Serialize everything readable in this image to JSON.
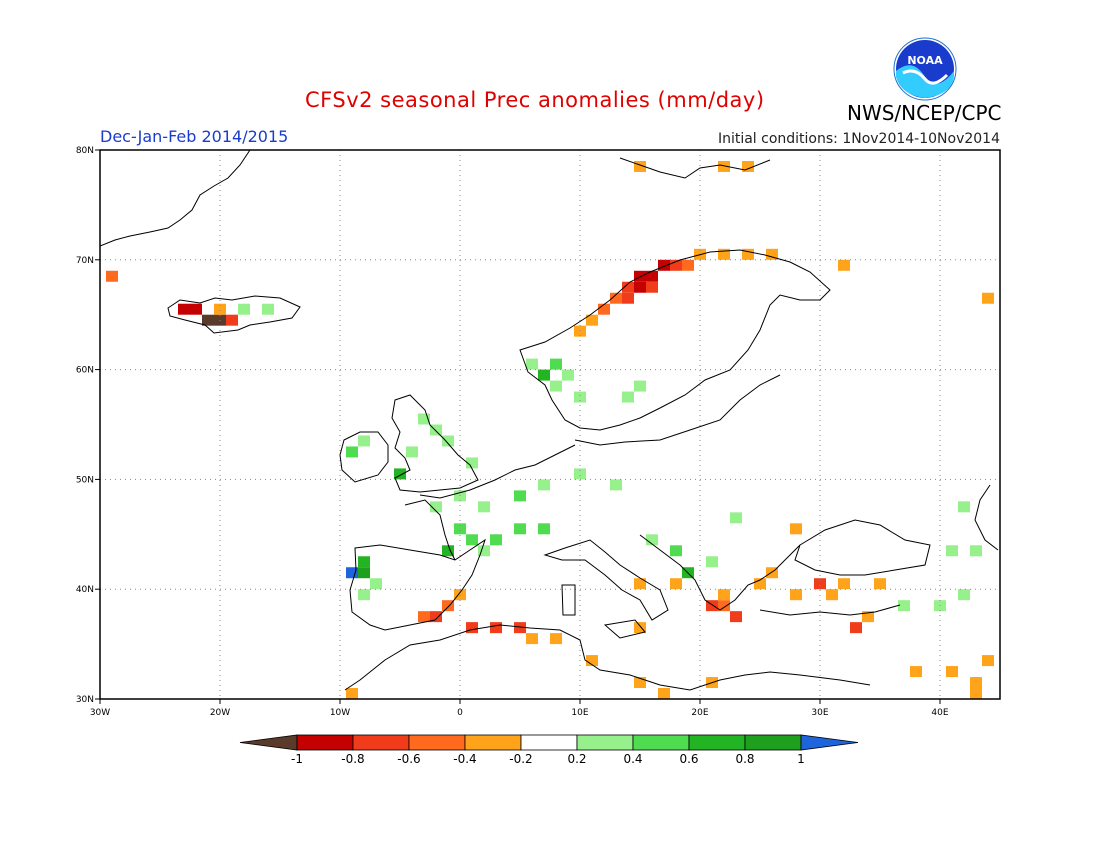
{
  "header": {
    "title": "CFSv2 seasonal Prec anomalies (mm/day)",
    "agency": "NWS/NCEP/CPC",
    "season": "Dec-Jan-Feb 2014/2015",
    "initial_conditions": "Initial conditions: 1Nov2014-10Nov2014",
    "logo_text": "NOAA"
  },
  "map": {
    "lon_range": [
      -30,
      45
    ],
    "lat_range": [
      30,
      80
    ],
    "lon_ticks": [
      {
        "value": -30,
        "label": "30W"
      },
      {
        "value": -20,
        "label": "20W"
      },
      {
        "value": -10,
        "label": "10W"
      },
      {
        "value": 0,
        "label": "0"
      },
      {
        "value": 10,
        "label": "10E"
      },
      {
        "value": 20,
        "label": "20E"
      },
      {
        "value": 30,
        "label": "30E"
      },
      {
        "value": 40,
        "label": "40E"
      }
    ],
    "lat_ticks": [
      {
        "value": 30,
        "label": "30N"
      },
      {
        "value": 40,
        "label": "40N"
      },
      {
        "value": 50,
        "label": "50N"
      },
      {
        "value": 60,
        "label": "60N"
      },
      {
        "value": 70,
        "label": "70N"
      },
      {
        "value": 80,
        "label": "80N"
      }
    ]
  },
  "colorbar": {
    "labels": [
      "-1",
      "-0.8",
      "-0.6",
      "-0.4",
      "-0.2",
      "0.2",
      "0.4",
      "0.6",
      "0.8",
      "1"
    ],
    "colors": [
      "#5a3a2a",
      "#c40000",
      "#f03c1a",
      "#ff6a1f",
      "#ffa31a",
      "#ffffff",
      "#96f08c",
      "#50dc50",
      "#23b423",
      "#1ea01e",
      "#1e64dc"
    ]
  },
  "anomalies": [
    {
      "lon": -29,
      "lat": 68.5,
      "v": -0.5
    },
    {
      "lon": -23,
      "lat": 65.5,
      "v": -0.9
    },
    {
      "lon": -22,
      "lat": 65.5,
      "v": -0.9
    },
    {
      "lon": -21,
      "lat": 64.5,
      "v": -1.1
    },
    {
      "lon": -20,
      "lat": 64.5,
      "v": -1.1
    },
    {
      "lon": -19,
      "lat": 64.5,
      "v": -0.7
    },
    {
      "lon": -20,
      "lat": 65.5,
      "v": -0.3
    },
    {
      "lon": -18,
      "lat": 65.5,
      "v": 0.3
    },
    {
      "lon": -16,
      "lat": 65.5,
      "v": 0.3
    },
    {
      "lon": 15,
      "lat": 68.5,
      "v": -0.9
    },
    {
      "lon": 16,
      "lat": 68.5,
      "v": -0.9
    },
    {
      "lon": 17,
      "lat": 69.5,
      "v": -0.9
    },
    {
      "lon": 18,
      "lat": 69.5,
      "v": -0.7
    },
    {
      "lon": 14,
      "lat": 67.5,
      "v": -0.7
    },
    {
      "lon": 15,
      "lat": 67.5,
      "v": -0.9
    },
    {
      "lon": 16,
      "lat": 67.5,
      "v": -0.7
    },
    {
      "lon": 13,
      "lat": 66.5,
      "v": -0.5
    },
    {
      "lon": 14,
      "lat": 66.5,
      "v": -0.7
    },
    {
      "lon": 12,
      "lat": 65.5,
      "v": -0.5
    },
    {
      "lon": 11,
      "lat": 64.5,
      "v": -0.3
    },
    {
      "lon": 10,
      "lat": 63.5,
      "v": -0.3
    },
    {
      "lon": 19,
      "lat": 69.5,
      "v": -0.5
    },
    {
      "lon": 20,
      "lat": 70.5,
      "v": -0.3
    },
    {
      "lon": 22,
      "lat": 70.5,
      "v": -0.3
    },
    {
      "lon": 24,
      "lat": 70.5,
      "v": -0.3
    },
    {
      "lon": 26,
      "lat": 70.5,
      "v": -0.3
    },
    {
      "lon": 15,
      "lat": 78.5,
      "v": -0.3
    },
    {
      "lon": 22,
      "lat": 78.5,
      "v": -0.3
    },
    {
      "lon": 24,
      "lat": 78.5,
      "v": -0.3
    },
    {
      "lon": 32,
      "lat": 69.5,
      "v": -0.3
    },
    {
      "lon": 44,
      "lat": 66.5,
      "v": -0.3
    },
    {
      "lon": 6,
      "lat": 60.5,
      "v": 0.3
    },
    {
      "lon": 7,
      "lat": 59.5,
      "v": 0.7
    },
    {
      "lon": 8,
      "lat": 60.5,
      "v": 0.5
    },
    {
      "lon": 9,
      "lat": 59.5,
      "v": 0.3
    },
    {
      "lon": 8,
      "lat": 58.5,
      "v": 0.3
    },
    {
      "lon": 10,
      "lat": 57.5,
      "v": 0.3
    },
    {
      "lon": 14,
      "lat": 57.5,
      "v": 0.3
    },
    {
      "lon": 15,
      "lat": 58.5,
      "v": 0.3
    },
    {
      "lon": -3,
      "lat": 55.5,
      "v": 0.3
    },
    {
      "lon": -2,
      "lat": 54.5,
      "v": 0.3
    },
    {
      "lon": -1,
      "lat": 53.5,
      "v": 0.3
    },
    {
      "lon": -4,
      "lat": 52.5,
      "v": 0.3
    },
    {
      "lon": -9,
      "lat": 52.5,
      "v": 0.5
    },
    {
      "lon": -8,
      "lat": 53.5,
      "v": 0.3
    },
    {
      "lon": -5,
      "lat": 50.5,
      "v": 0.7
    },
    {
      "lon": 1,
      "lat": 51.5,
      "v": 0.3
    },
    {
      "lon": 0,
      "lat": 48.5,
      "v": 0.3
    },
    {
      "lon": -2,
      "lat": 47.5,
      "v": 0.3
    },
    {
      "lon": 2,
      "lat": 47.5,
      "v": 0.3
    },
    {
      "lon": 5,
      "lat": 48.5,
      "v": 0.5
    },
    {
      "lon": 7,
      "lat": 49.5,
      "v": 0.3
    },
    {
      "lon": 10,
      "lat": 50.5,
      "v": 0.3
    },
    {
      "lon": 13,
      "lat": 49.5,
      "v": 0.3
    },
    {
      "lon": 0,
      "lat": 45.5,
      "v": 0.5
    },
    {
      "lon": 1,
      "lat": 44.5,
      "v": 0.5
    },
    {
      "lon": 3,
      "lat": 44.5,
      "v": 0.5
    },
    {
      "lon": 5,
      "lat": 45.5,
      "v": 0.5
    },
    {
      "lon": 7,
      "lat": 45.5,
      "v": 0.5
    },
    {
      "lon": -1,
      "lat": 43.5,
      "v": 0.7
    },
    {
      "lon": 2,
      "lat": 43.5,
      "v": 0.3
    },
    {
      "lon": -8,
      "lat": 42.5,
      "v": 0.7
    },
    {
      "lon": -8,
      "lat": 41.5,
      "v": 0.9
    },
    {
      "lon": -9,
      "lat": 41.5,
      "v": 1.1
    },
    {
      "lon": -7,
      "lat": 40.5,
      "v": 0.3
    },
    {
      "lon": -8,
      "lat": 39.5,
      "v": 0.3
    },
    {
      "lon": 16,
      "lat": 44.5,
      "v": 0.3
    },
    {
      "lon": 18,
      "lat": 43.5,
      "v": 0.5
    },
    {
      "lon": 19,
      "lat": 41.5,
      "v": 0.7
    },
    {
      "lon": 21,
      "lat": 42.5,
      "v": 0.3
    },
    {
      "lon": 23,
      "lat": 46.5,
      "v": 0.3
    },
    {
      "lon": 41,
      "lat": 43.5,
      "v": 0.3
    },
    {
      "lon": 43,
      "lat": 43.5,
      "v": 0.3
    },
    {
      "lon": 42,
      "lat": 47.5,
      "v": 0.3
    },
    {
      "lon": 37,
      "lat": 38.5,
      "v": 0.3
    },
    {
      "lon": 40,
      "lat": 38.5,
      "v": 0.3
    },
    {
      "lon": 42,
      "lat": 39.5,
      "v": 0.3
    },
    {
      "lon": 21,
      "lat": 38.5,
      "v": -0.7
    },
    {
      "lon": 22,
      "lat": 38.5,
      "v": -0.5
    },
    {
      "lon": 23,
      "lat": 37.5,
      "v": -0.7
    },
    {
      "lon": 22,
      "lat": 39.5,
      "v": -0.3
    },
    {
      "lon": 25,
      "lat": 40.5,
      "v": -0.3
    },
    {
      "lon": 26,
      "lat": 41.5,
      "v": -0.3
    },
    {
      "lon": 28,
      "lat": 39.5,
      "v": -0.3
    },
    {
      "lon": 30,
      "lat": 40.5,
      "v": -0.7
    },
    {
      "lon": 32,
      "lat": 40.5,
      "v": -0.3
    },
    {
      "lon": 35,
      "lat": 40.5,
      "v": -0.3
    },
    {
      "lon": 31,
      "lat": 39.5,
      "v": -0.3
    },
    {
      "lon": 33,
      "lat": 36.5,
      "v": -0.7
    },
    {
      "lon": 34,
      "lat": 37.5,
      "v": -0.3
    },
    {
      "lon": 28,
      "lat": 45.5,
      "v": -0.3
    },
    {
      "lon": 18,
      "lat": 40.5,
      "v": -0.3
    },
    {
      "lon": 15,
      "lat": 40.5,
      "v": -0.3
    },
    {
      "lon": -2,
      "lat": 37.5,
      "v": -0.7
    },
    {
      "lon": -1,
      "lat": 38.5,
      "v": -0.5
    },
    {
      "lon": -3,
      "lat": 37.5,
      "v": -0.5
    },
    {
      "lon": 0,
      "lat": 39.5,
      "v": -0.3
    },
    {
      "lon": 1,
      "lat": 36.5,
      "v": -0.7
    },
    {
      "lon": 3,
      "lat": 36.5,
      "v": -0.7
    },
    {
      "lon": 5,
      "lat": 36.5,
      "v": -0.7
    },
    {
      "lon": 6,
      "lat": 35.5,
      "v": -0.3
    },
    {
      "lon": 8,
      "lat": 35.5,
      "v": -0.3
    },
    {
      "lon": 11,
      "lat": 33.5,
      "v": -0.3
    },
    {
      "lon": 15,
      "lat": 31.5,
      "v": -0.3
    },
    {
      "lon": 17,
      "lat": 30.5,
      "v": -0.3
    },
    {
      "lon": 21,
      "lat": 31.5,
      "v": -0.3
    },
    {
      "lon": -9,
      "lat": 30.5,
      "v": -0.3
    },
    {
      "lon": 15,
      "lat": 36.5,
      "v": -0.3
    },
    {
      "lon": 38,
      "lat": 32.5,
      "v": -0.3
    },
    {
      "lon": 41,
      "lat": 32.5,
      "v": -0.3
    },
    {
      "lon": 43,
      "lat": 31.5,
      "v": -0.3
    },
    {
      "lon": 44,
      "lat": 33.5,
      "v": -0.3
    },
    {
      "lon": 43,
      "lat": 30.5,
      "v": -0.3
    }
  ]
}
